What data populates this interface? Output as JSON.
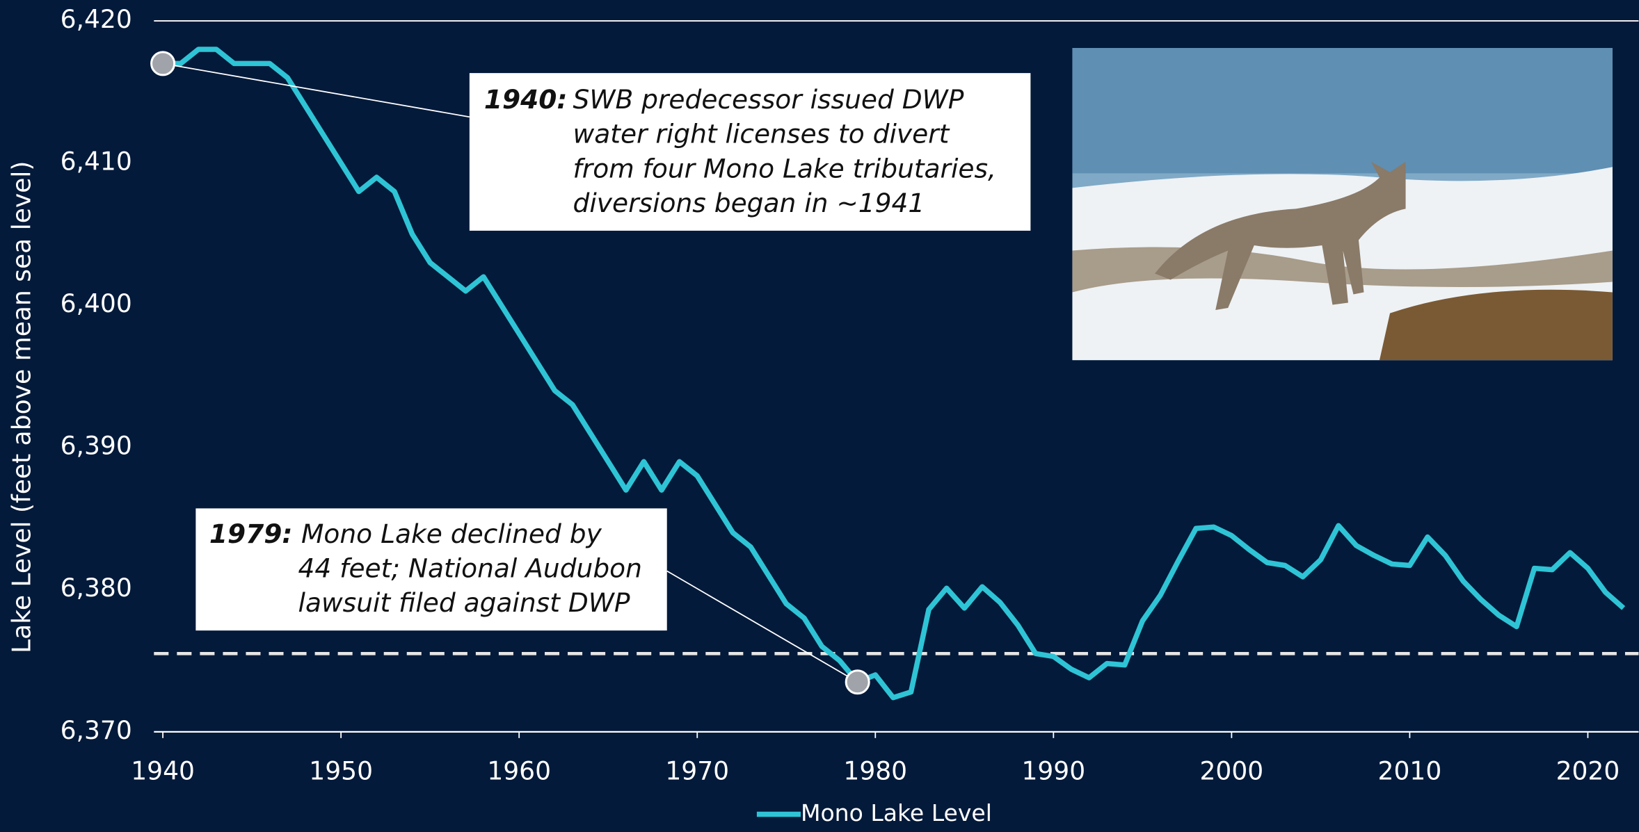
{
  "chart_data": {
    "type": "line",
    "y_label": "Lake Level (feet above mean sea level)",
    "x": [
      1940,
      1941,
      1942,
      1943,
      1944,
      1945,
      1946,
      1947,
      1948,
      1949,
      1950,
      1951,
      1952,
      1953,
      1954,
      1955,
      1956,
      1957,
      1958,
      1959,
      1960,
      1961,
      1962,
      1963,
      1964,
      1965,
      1966,
      1967,
      1968,
      1969,
      1970,
      1971,
      1972,
      1973,
      1974,
      1975,
      1976,
      1977,
      1978,
      1979,
      1980,
      1981,
      1982,
      1983,
      1984,
      1985,
      1986,
      1987,
      1988,
      1989,
      1990,
      1991,
      1992,
      1993,
      1994,
      1995,
      1996,
      1997,
      1998,
      1999,
      2000,
      2001,
      2002,
      2003,
      2004,
      2005,
      2006,
      2007,
      2008,
      2009,
      2010,
      2011,
      2012,
      2013,
      2014,
      2015,
      2016,
      2017,
      2018,
      2019,
      2020,
      2021,
      2022
    ],
    "series": [
      {
        "name": "Mono Lake Level",
        "color": "#2ec4d6",
        "values": [
          6417,
          6417,
          6418,
          6418,
          6417,
          6417,
          6417,
          6416,
          6414,
          6412,
          6410,
          6408,
          6409,
          6408,
          6405,
          6403,
          6402,
          6401,
          6402,
          6400,
          6398,
          6396,
          6394,
          6393,
          6391,
          6389,
          6387,
          6389,
          6387,
          6389,
          6388,
          6386,
          6384,
          6383,
          6381,
          6379,
          6378,
          6376,
          6375,
          6373.5,
          6374,
          6372.4,
          6372.8,
          6378.6,
          6380.1,
          6378.7,
          6380.2,
          6379.1,
          6377.5,
          6375.5,
          6375.3,
          6374.4,
          6373.8,
          6374.8,
          6374.7,
          6377.8,
          6379.6,
          6382,
          6384.3,
          6384.4,
          6383.8,
          6382.8,
          6381.9,
          6381.7,
          6380.9,
          6382.1,
          6384.5,
          6383.1,
          6382.4,
          6381.8,
          6381.7,
          6383.7,
          6382.4,
          6380.6,
          6379.3,
          6378.2,
          6377.4,
          6381.5,
          6381.4,
          6382.6,
          6381.5,
          6379.8,
          6378.7
        ]
      }
    ],
    "xlim": [
      1939.5,
      2022.5
    ],
    "xticks": [
      1940,
      1950,
      1960,
      1970,
      1980,
      1990,
      2000,
      2010,
      2020
    ],
    "ylim": [
      6370,
      6420
    ],
    "yticks": [
      {
        "value": 6370,
        "label": "6,370"
      },
      {
        "value": 6380,
        "label": "6,380"
      },
      {
        "value": 6390,
        "label": "6,390"
      },
      {
        "value": 6400,
        "label": "6,400"
      },
      {
        "value": 6410,
        "label": "6,410"
      },
      {
        "value": 6420,
        "label": "6,420"
      }
    ],
    "reference_line": 6375.5,
    "grid": false,
    "legend": "bottom",
    "annotations": [
      {
        "year": "1940:",
        "lines": [
          "SWB predecessor issued DWP",
          "water right licenses to divert",
          "from four Mono Lake tributaries,",
          "diversions began in ~1941"
        ],
        "point": 0
      },
      {
        "year": "1979:",
        "lines": [
          "Mono Lake declined by",
          "44 feet; National Audubon",
          "lawsuit filed against DWP"
        ],
        "point": 39
      }
    ]
  }
}
